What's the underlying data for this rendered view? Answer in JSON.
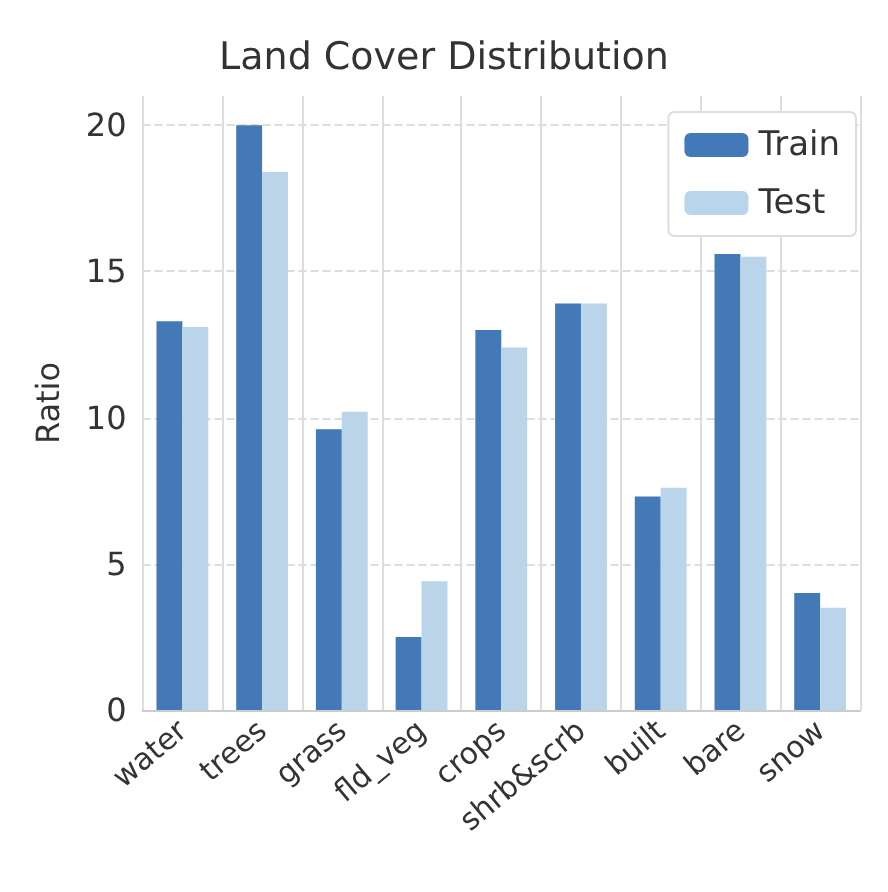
{
  "chart_data": {
    "type": "bar",
    "title": "Land Cover Distribution",
    "ylabel": "Ratio",
    "categories": [
      "water",
      "trees",
      "grass",
      "fld_veg",
      "crops",
      "shrb&scrb",
      "built",
      "bare",
      "snow"
    ],
    "series": [
      {
        "name": "Train",
        "color": "#4479b8",
        "values": [
          13.3,
          20.0,
          9.6,
          2.5,
          13.0,
          13.9,
          7.3,
          15.6,
          4.0
        ]
      },
      {
        "name": "Test",
        "color": "#bad4e9",
        "values": [
          13.1,
          18.4,
          10.2,
          4.4,
          12.4,
          13.9,
          7.6,
          15.5,
          3.5
        ]
      }
    ],
    "ylim": [
      0,
      21
    ],
    "yticks": [
      0,
      5,
      10,
      15,
      20
    ],
    "grid": true,
    "legend": "top right"
  }
}
